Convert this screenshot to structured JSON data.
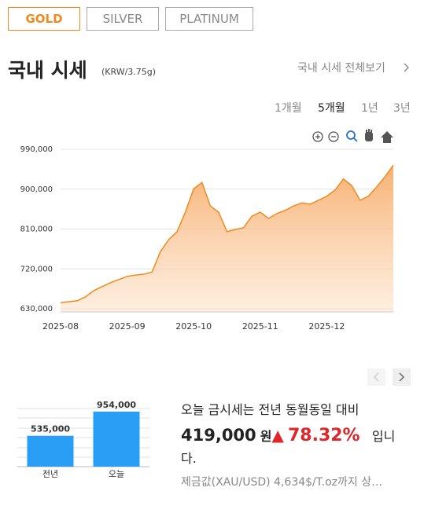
{
  "tabs": [
    "GOLD",
    "SILVER",
    "PLATINUM"
  ],
  "header": {
    "title": "국내 시세",
    "unit": "(KRW/3.75g)",
    "link": "국내 시세 전체보기"
  },
  "periods": [
    "1개월",
    "5개월",
    "1년",
    "3년"
  ],
  "chart_data": [
    {
      "type": "area",
      "categories": [
        "2025-08",
        null,
        null,
        null,
        null,
        null,
        null,
        null,
        "2025-09",
        null,
        null,
        null,
        null,
        null,
        null,
        null,
        "2025-10",
        null,
        null,
        null,
        null,
        null,
        null,
        null,
        "2025-11",
        null,
        null,
        null,
        null,
        null,
        null,
        null,
        "2025-12",
        null,
        null,
        null,
        null,
        null,
        null,
        null,
        null
      ],
      "values": [
        644000,
        646000,
        648000,
        657000,
        671000,
        680000,
        689000,
        696000,
        703000,
        706000,
        708000,
        713000,
        759000,
        786000,
        804000,
        848000,
        901000,
        915000,
        862000,
        848000,
        804000,
        809000,
        813000,
        839000,
        848000,
        834000,
        845000,
        852000,
        862000,
        869000,
        866000,
        875000,
        884000,
        898000,
        923000,
        908000,
        875000,
        884000,
        905000,
        928000,
        954000
      ],
      "color": "#f08a1c",
      "ylim": [
        623000,
        990000
      ],
      "yticks": [
        {
          "value": 630000,
          "label": "630,000"
        },
        {
          "value": 720000,
          "label": "720,000"
        },
        {
          "value": 810000,
          "label": "810,000"
        },
        {
          "value": 900000,
          "label": "900,000"
        },
        {
          "value": 990000,
          "label": "990,000"
        }
      ],
      "grid": true
    },
    {
      "type": "bar",
      "categories": [
        "전년",
        "오늘"
      ],
      "values": [
        535000,
        954000
      ],
      "value_labels": [
        "535,000",
        "954,000"
      ],
      "color": "#2a9df4",
      "ylim": [
        0,
        1000000
      ]
    }
  ],
  "summary": {
    "line1": "오늘 금시세는 전년 동월동일 대비",
    "amount": "419,000",
    "unit": "원",
    "arrow": "▲",
    "change": "78.32%",
    "tail": "입니다.",
    "note": "제금값(XAU/USD) 4,634$/T.oz까지 상…"
  }
}
